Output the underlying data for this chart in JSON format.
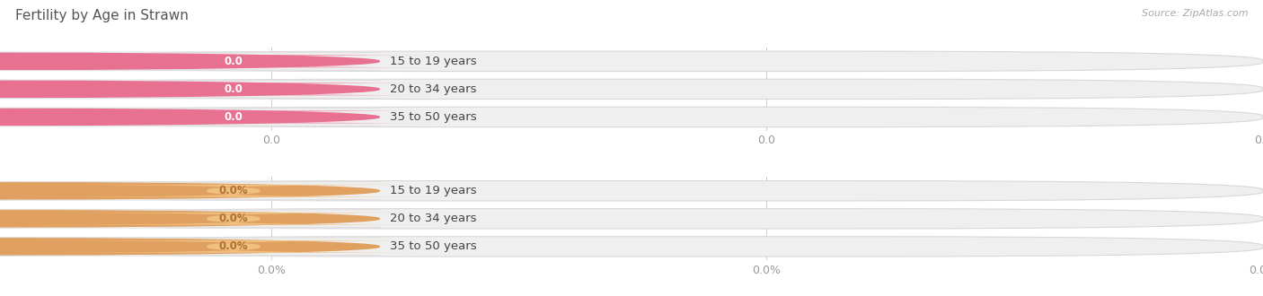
{
  "title": "Fertility by Age in Strawn",
  "source": "Source: ZipAtlas.com",
  "sections": [
    {
      "labels": [
        "15 to 19 years",
        "20 to 34 years",
        "35 to 50 years"
      ],
      "values": [
        0.0,
        0.0,
        0.0
      ],
      "bar_bg_color": "#efefef",
      "pill_color": "#ffffff",
      "pill_border_color": "#e0e0e0",
      "circle_color": "#e87090",
      "badge_color": "#e87090",
      "badge_text_color": "#ffffff",
      "value_suffix": "",
      "tick_label_format": "0.0"
    },
    {
      "labels": [
        "15 to 19 years",
        "20 to 34 years",
        "35 to 50 years"
      ],
      "values": [
        0.0,
        0.0,
        0.0
      ],
      "bar_bg_color": "#efefef",
      "pill_color": "#ffffff",
      "pill_border_color": "#e0e0e0",
      "circle_color": "#e0a060",
      "badge_color": "#f0c080",
      "badge_text_color": "#b07030",
      "value_suffix": "%",
      "tick_label_format": "0.0%"
    }
  ],
  "bg_color": "#ffffff",
  "title_fontsize": 11,
  "label_fontsize": 9.5,
  "value_fontsize": 8.5,
  "tick_fontsize": 9,
  "source_fontsize": 8
}
